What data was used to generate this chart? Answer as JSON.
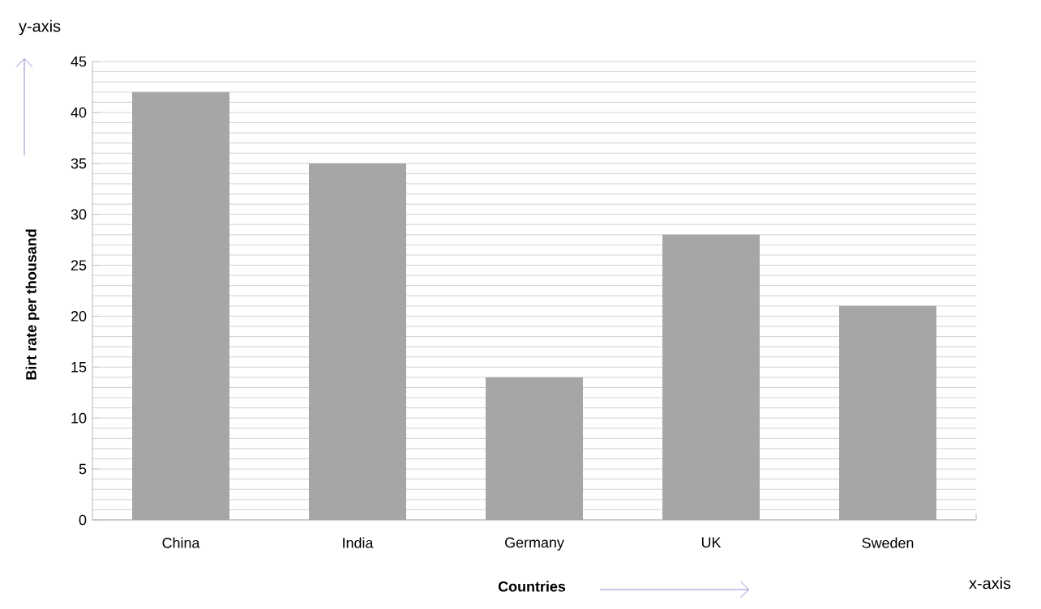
{
  "chart_data": {
    "type": "bar",
    "categories": [
      "China",
      "India",
      "Germany",
      "UK",
      "Sweden"
    ],
    "values": [
      42,
      35,
      14,
      28,
      21
    ],
    "color": "#a6a6a6",
    "xlabel": "Countries",
    "ylabel": "Birt rate per thousand",
    "ylim": [
      0,
      45
    ],
    "yticks": [
      0,
      5,
      10,
      15,
      20,
      25,
      30,
      35,
      40,
      45
    ],
    "grid": true,
    "annotations": [
      "y-axis",
      "x-axis"
    ]
  }
}
